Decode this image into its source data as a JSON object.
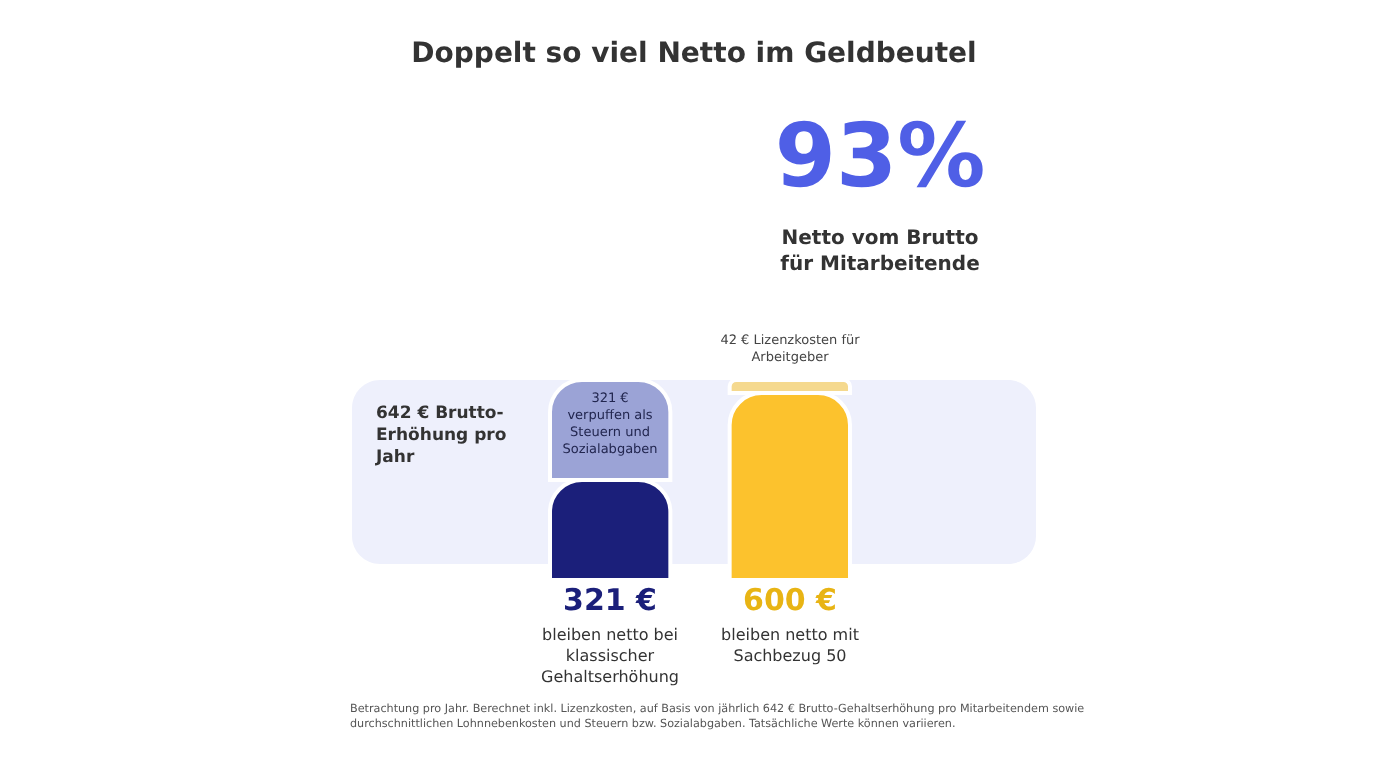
{
  "chart_data": {
    "type": "bar",
    "stacked": true,
    "title": "Doppelt so viel Netto im Geldbeutel",
    "categories": [
      "bleiben netto bei klassischer Gehaltserhöhung",
      "bleiben netto mit Sachbezug 50"
    ],
    "series": [
      {
        "colors": [
          "#1b1f7a",
          "#fcc22d"
        ],
        "values": [
          321,
          600
        ],
        "value_labels": [
          "321 €",
          "600 €"
        ]
      },
      {
        "colors": [
          "#9ba3d6",
          "#f5d98e"
        ],
        "values": [
          321,
          42
        ],
        "value_labels": [
          "321 € verpuffen als Steuern und Sozialabgaben",
          "42 € Lizenzkosten für Arbeitgeber"
        ]
      }
    ],
    "annotations": [
      "642 € Brutto-Erhöhung pro Jahr",
      "93%",
      "Netto vom Brutto für Mitarbeitende",
      "Betrachtung pro Jahr. Berechnet inkl. Lizenzkosten, auf Basis von jährlich 642 € Brutto-Gehaltserhöhung pro Mitarbeitendem sowie durchschnittlichen Lohnnebenkosten und Steuern bzw. Sozialabgaben. Tatsächliche Werte können variieren."
    ]
  }
}
